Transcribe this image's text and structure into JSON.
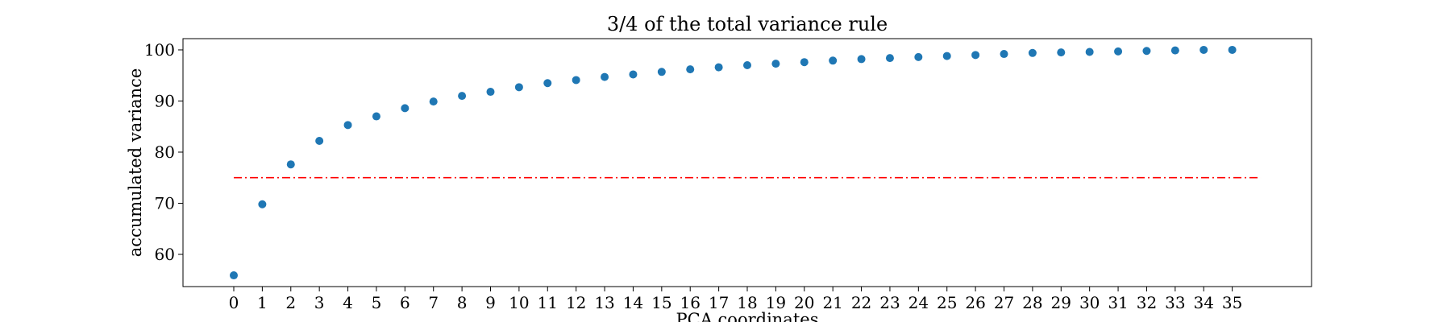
{
  "chart_data": {
    "type": "scatter",
    "title": "3/4 of the total variance rule",
    "xlabel": "PCA coordinates",
    "ylabel": "accumulated variance",
    "x": [
      0,
      1,
      2,
      3,
      4,
      5,
      6,
      7,
      8,
      9,
      10,
      11,
      12,
      13,
      14,
      15,
      16,
      17,
      18,
      19,
      20,
      21,
      22,
      23,
      24,
      25,
      26,
      27,
      28,
      29,
      30,
      31,
      32,
      33,
      34,
      35
    ],
    "y": [
      55.9,
      69.8,
      77.6,
      82.2,
      85.3,
      87.0,
      88.6,
      89.9,
      91.0,
      91.8,
      92.7,
      93.5,
      94.1,
      94.7,
      95.2,
      95.7,
      96.2,
      96.6,
      97.0,
      97.3,
      97.6,
      97.9,
      98.2,
      98.4,
      98.6,
      98.8,
      99.0,
      99.2,
      99.4,
      99.5,
      99.6,
      99.7,
      99.8,
      99.9,
      100.0,
      100.0
    ],
    "xticks": [
      "0",
      "1",
      "2",
      "3",
      "4",
      "5",
      "6",
      "7",
      "8",
      "9",
      "10",
      "11",
      "12",
      "13",
      "14",
      "15",
      "16",
      "17",
      "18",
      "19",
      "20",
      "21",
      "22",
      "23",
      "24",
      "25",
      "26",
      "27",
      "28",
      "29",
      "30",
      "31",
      "32",
      "33",
      "34",
      "35"
    ],
    "yticks": [
      "60",
      "70",
      "80",
      "90",
      "100"
    ],
    "xlim": [
      -1.78,
      37.78
    ],
    "ylim": [
      53.7,
      102.2
    ],
    "threshold": {
      "y": 75,
      "x_from": 0,
      "x_to": 36,
      "color": "#ff0000",
      "style": "dash-dot"
    },
    "point_color": "#1f77b4",
    "grid": false,
    "legend": "none"
  }
}
